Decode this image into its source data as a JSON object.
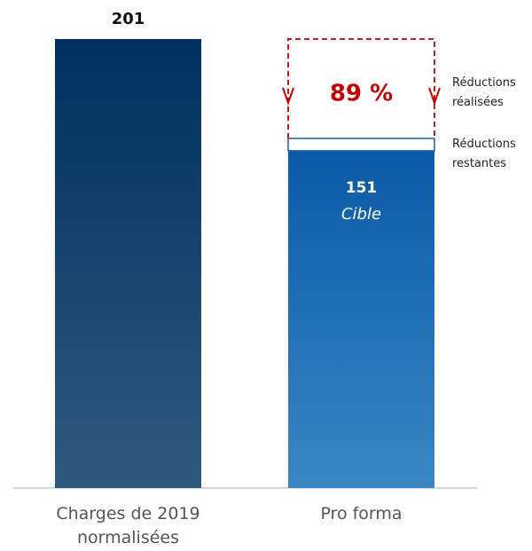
{
  "chart_data": {
    "type": "bar",
    "categories": [
      "Charges de 2019 normalisées",
      "Pro forma"
    ],
    "values": [
      201,
      151
    ],
    "colors": [
      [
        "#00305f",
        "#30597e"
      ],
      [
        "#0a5aa8",
        "#3a87c3"
      ]
    ],
    "sublabel": "Cible",
    "reduction": {
      "realized_pct": 89,
      "realized_label": "89 %",
      "realized_text": "Réductions réalisées",
      "remaining_text": "Réductions restantes",
      "color": "#c00000"
    }
  }
}
